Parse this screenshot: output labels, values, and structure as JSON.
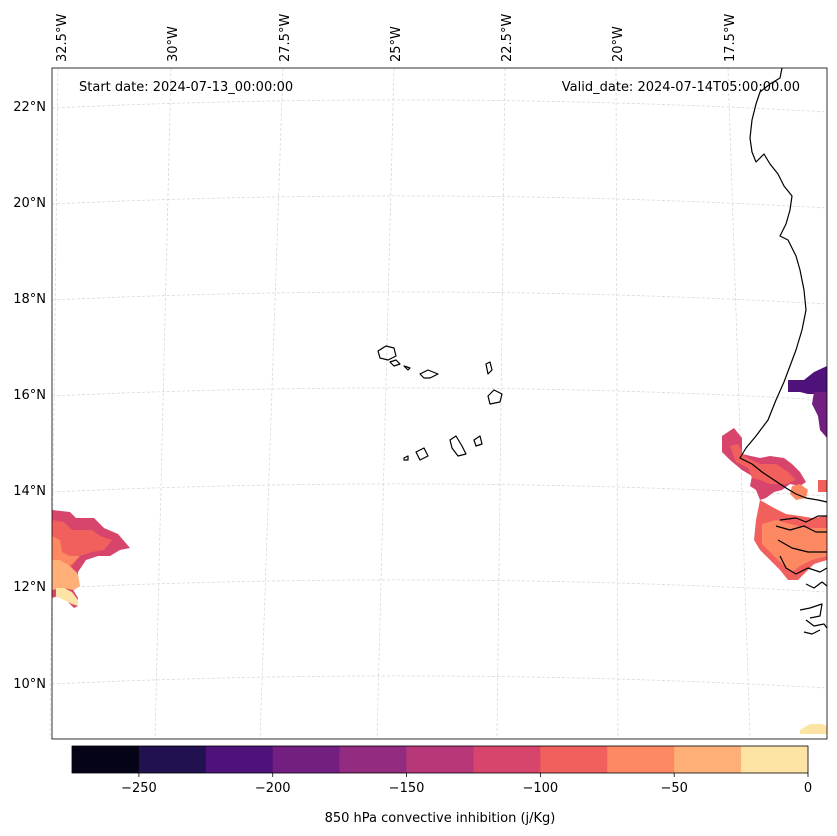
{
  "header": {
    "start_date": "Start date: 2024-07-13_00:00:00",
    "valid_date": "Valid_date: 2024-07-14T05:00:00.00"
  },
  "map": {
    "longitude_labels": [
      "32.5°W",
      "30°W",
      "27.5°W",
      "25°W",
      "22.5°W",
      "20°W",
      "17.5°W"
    ],
    "latitude_labels": [
      "22°N",
      "20°N",
      "18°N",
      "16°N",
      "14°N",
      "12°N",
      "10°N"
    ],
    "gridline_color": "#d9d9d9",
    "coastline_color": "#000000"
  },
  "colorbar": {
    "label": "850 hPa convective inhibition (j/Kg)",
    "tick_labels": [
      "−250",
      "−200",
      "−150",
      "−100",
      "−50",
      "0"
    ],
    "bins": [
      -275,
      -250,
      -225,
      -200,
      -175,
      -150,
      -125,
      -100,
      -75,
      -50,
      -25,
      0
    ],
    "colors": [
      "#050417",
      "#221150",
      "#4f127b",
      "#721f81",
      "#932b80",
      "#b73779",
      "#d8456c",
      "#f1605d",
      "#fc8961",
      "#feb078",
      "#fde4a5"
    ]
  }
}
